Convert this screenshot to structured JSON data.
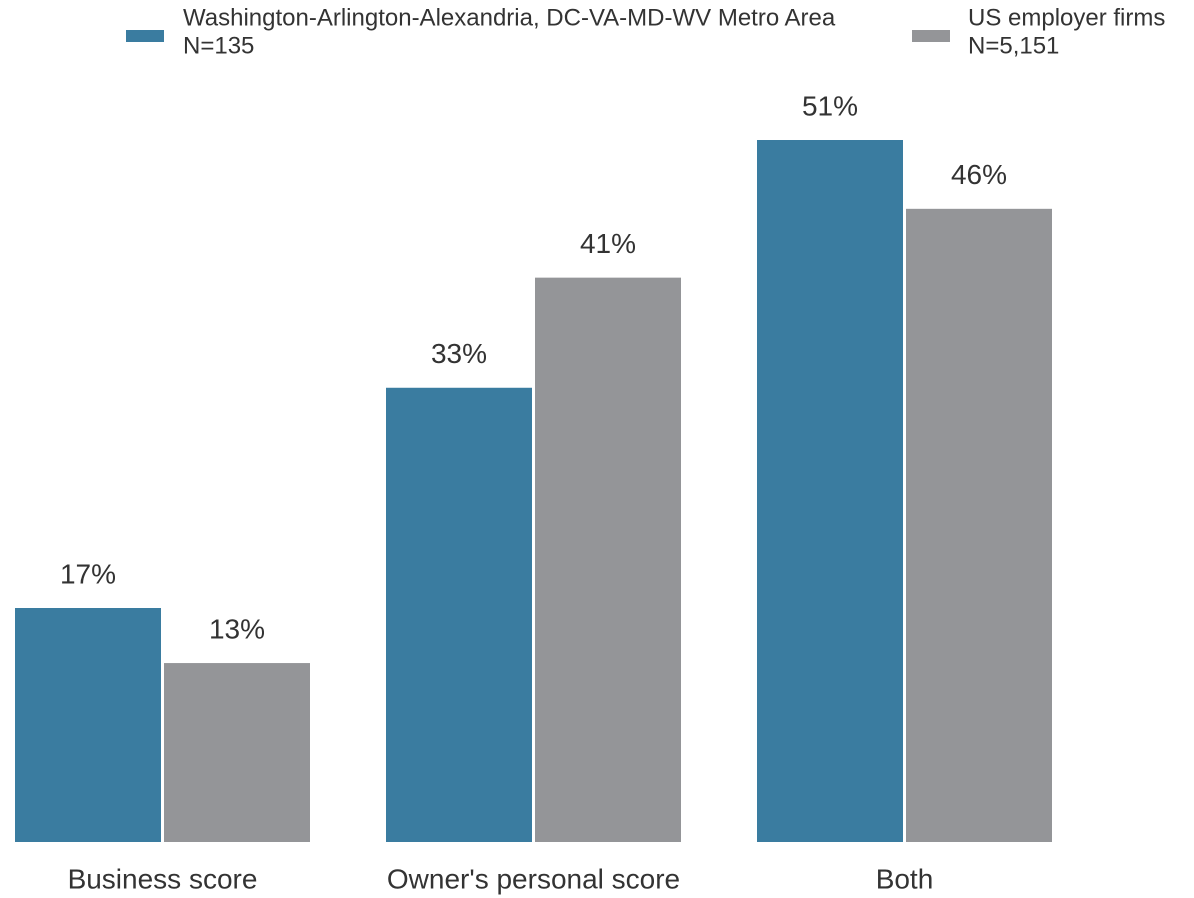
{
  "chart_data": {
    "type": "bar",
    "categories": [
      "Business score",
      "Owner's personal score",
      "Both"
    ],
    "series": [
      {
        "name": "Washington-Arlington-Alexandria, DC-VA-MD-WV Metro Area",
        "note": "N=135",
        "color": "#3a7ca0",
        "values": [
          17,
          33,
          51
        ],
        "value_labels": [
          "17%",
          "33%",
          "51%"
        ]
      },
      {
        "name": "US employer firms",
        "note": "N=5,151",
        "color": "#949598",
        "values": [
          13,
          41,
          46
        ],
        "value_labels": [
          "13%",
          "41%",
          "46%"
        ]
      }
    ]
  }
}
